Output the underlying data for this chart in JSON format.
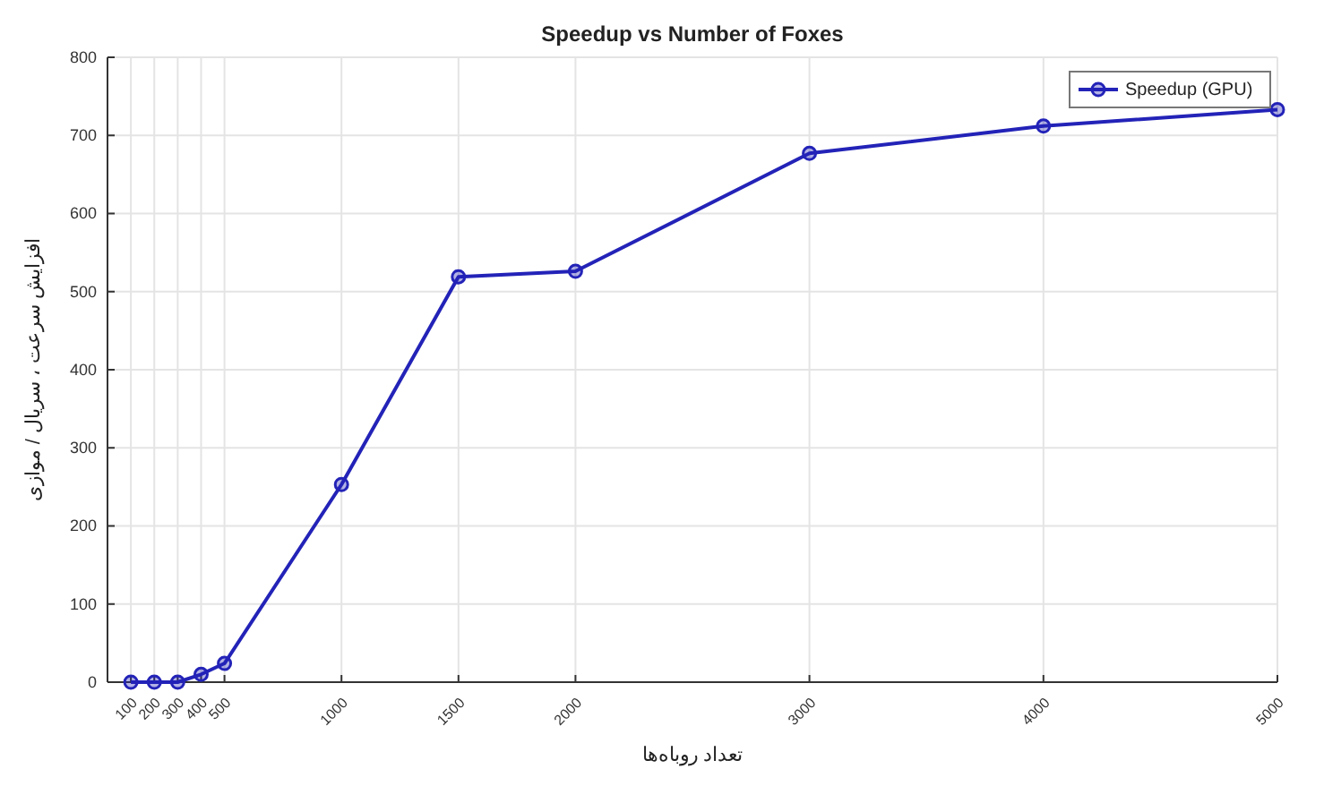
{
  "chart_data": {
    "type": "line",
    "title": "Speedup vs Number of Foxes",
    "xlabel": "تعداد روباه‌ها",
    "ylabel": "افزایش سرعت ، سریال / موازی",
    "x": [
      100,
      200,
      300,
      400,
      500,
      1000,
      1500,
      2000,
      3000,
      4000,
      5000
    ],
    "series": [
      {
        "name": "Speedup (GPU)",
        "color": "#2323b8",
        "values": [
          0,
          0,
          0,
          10,
          24,
          253,
          519,
          526,
          677,
          712,
          733
        ]
      }
    ],
    "xlim": [
      0,
      5000
    ],
    "xticks": [
      100,
      200,
      300,
      400,
      500,
      1000,
      1500,
      2000,
      3000,
      4000,
      5000
    ],
    "ylim": [
      0,
      800
    ],
    "yticks": [
      0,
      100,
      200,
      300,
      400,
      500,
      600,
      700,
      800
    ],
    "grid": true,
    "legend": "top right",
    "marker": "circle",
    "line_style": "solid"
  }
}
